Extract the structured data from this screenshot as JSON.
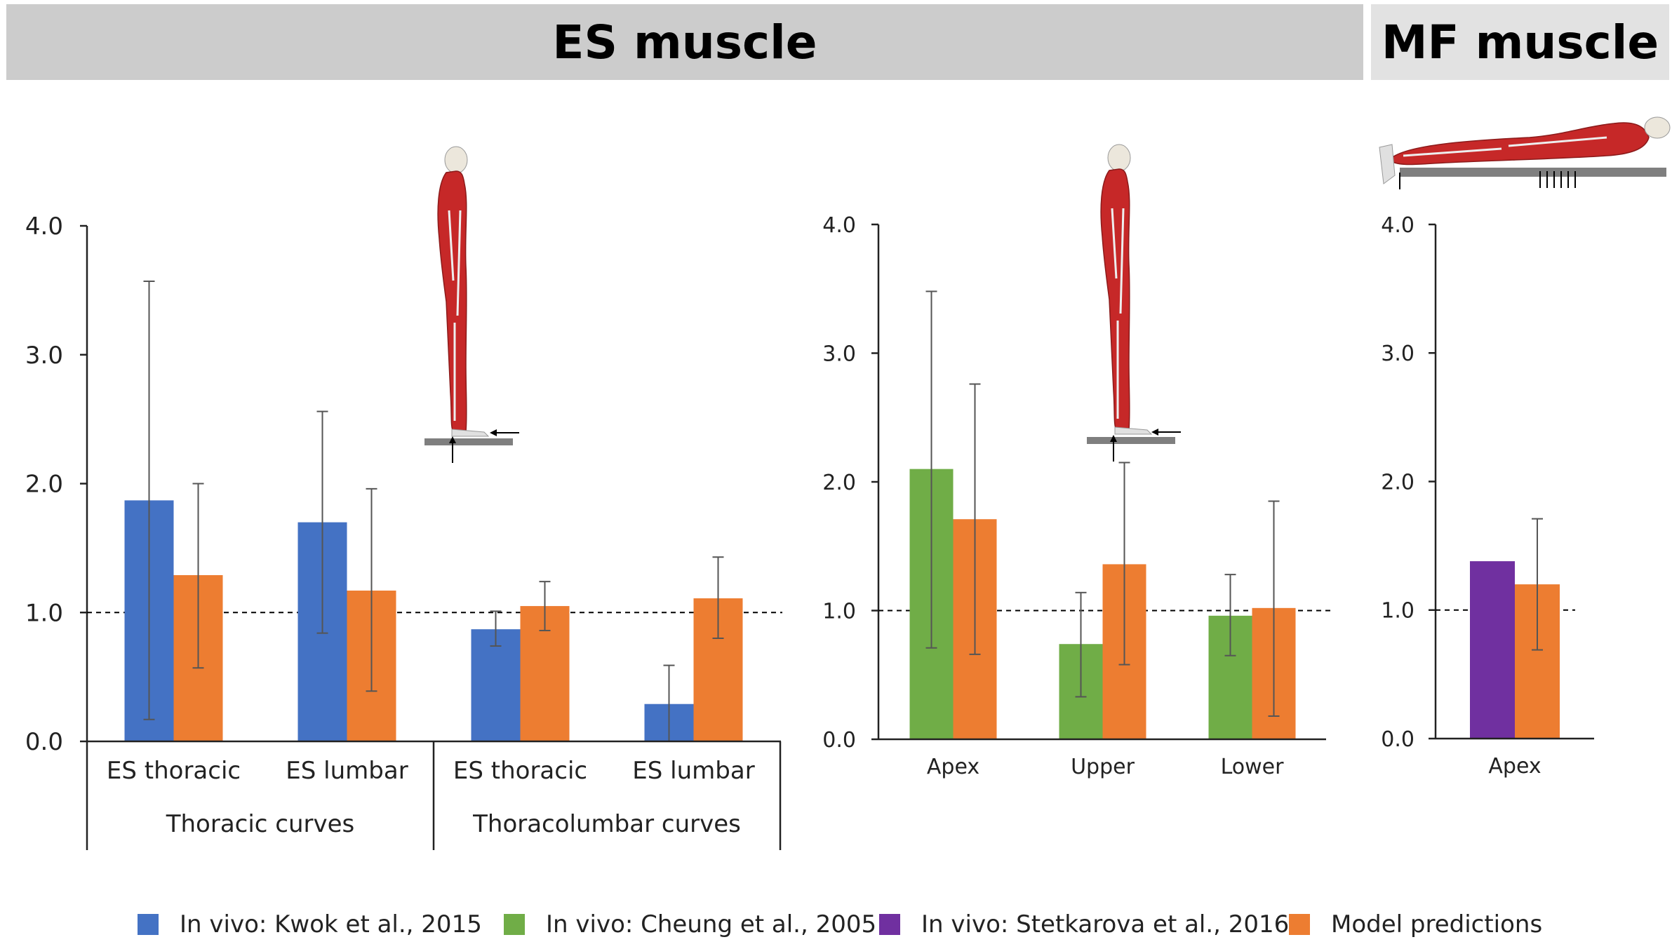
{
  "banners": {
    "es": "ES muscle",
    "mf": "MF muscle"
  },
  "colors": {
    "kwok": "#4472c4",
    "cheung": "#70ad47",
    "stetkarova": "#7030a0",
    "model": "#ed7d31",
    "axis": "#222222",
    "errorbar": "#555555"
  },
  "legend": [
    {
      "label": "In vivo: Kwok et al., 2015",
      "color": "#4472c4"
    },
    {
      "label": "In vivo: Cheung et al., 2005",
      "color": "#70ad47"
    },
    {
      "label": "In vivo: Stetkarova et al., 2016",
      "color": "#7030a0"
    },
    {
      "label": "Model predictions",
      "color": "#ed7d31"
    }
  ],
  "chart_data": [
    {
      "type": "bar",
      "title": "ES muscle",
      "ylim": [
        0,
        4
      ],
      "yticks": [
        "0.0",
        "1.0",
        "2.0",
        "3.0",
        "4.0"
      ],
      "reference_line": 1.0,
      "categories": [
        "ES thoracic",
        "ES lumbar",
        "ES thoracic",
        "ES lumbar"
      ],
      "groups": [
        {
          "label": "Thoracic curves",
          "span": [
            0,
            1
          ]
        },
        {
          "label": "Thoracolumbar curves",
          "span": [
            2,
            3
          ]
        }
      ],
      "series": [
        {
          "name": "In vivo: Kwok et al., 2015",
          "colorKey": "kwok",
          "values": [
            1.87,
            1.7,
            0.87,
            0.29
          ],
          "err_low": [
            0.17,
            0.84,
            0.74,
            0.0
          ],
          "err_high": [
            3.57,
            2.56,
            1.01,
            0.59
          ]
        },
        {
          "name": "Model predictions",
          "colorKey": "model",
          "values": [
            1.29,
            1.17,
            1.05,
            1.11
          ],
          "err_low": [
            0.57,
            0.39,
            0.86,
            0.8
          ],
          "err_high": [
            2.0,
            1.96,
            1.24,
            1.43
          ]
        }
      ]
    },
    {
      "type": "bar",
      "ylim": [
        0,
        4
      ],
      "yticks": [
        "0.0",
        "1.0",
        "2.0",
        "3.0",
        "4.0"
      ],
      "reference_line": 1.0,
      "categories": [
        "Apex",
        "Upper",
        "Lower"
      ],
      "series": [
        {
          "name": "In vivo: Cheung et al., 2005",
          "colorKey": "cheung",
          "values": [
            2.1,
            0.74,
            0.96
          ],
          "err_low": [
            0.71,
            0.33,
            0.65
          ],
          "err_high": [
            3.48,
            1.14,
            1.28
          ]
        },
        {
          "name": "Model predictions",
          "colorKey": "model",
          "values": [
            1.71,
            1.36,
            1.02
          ],
          "err_low": [
            0.66,
            0.58,
            0.18
          ],
          "err_high": [
            2.76,
            2.15,
            1.85
          ]
        }
      ]
    },
    {
      "type": "bar",
      "title": "MF muscle",
      "ylim": [
        0,
        4
      ],
      "yticks": [
        "0.0",
        "1.0",
        "2.0",
        "3.0",
        "4.0"
      ],
      "reference_line": 1.0,
      "categories": [
        "Apex"
      ],
      "series": [
        {
          "name": "In vivo: Stetkarova et al., 2016",
          "colorKey": "stetkarova",
          "values": [
            1.38
          ],
          "err_low": [
            null
          ],
          "err_high": [
            null
          ]
        },
        {
          "name": "Model predictions",
          "colorKey": "model",
          "values": [
            1.2
          ],
          "err_low": [
            0.69
          ],
          "err_high": [
            1.71
          ]
        }
      ]
    }
  ]
}
